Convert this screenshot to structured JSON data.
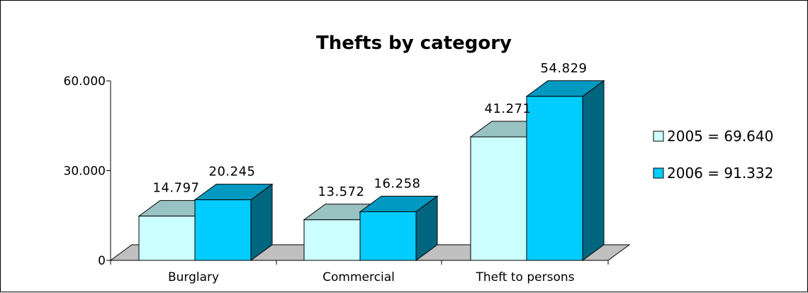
{
  "chart_data": {
    "type": "bar",
    "title": "Thefts by category",
    "xlabel": "",
    "ylabel": "",
    "categories": [
      "Burglary",
      "Commercial",
      "Theft to persons"
    ],
    "series": [
      {
        "name": "2005 = 69.640",
        "values": [
          14797,
          13572,
          41271
        ],
        "value_labels": [
          "14.797",
          "13.572",
          "41.271"
        ]
      },
      {
        "name": "2006 = 91.332",
        "values": [
          20245,
          16258,
          54829
        ],
        "value_labels": [
          "20.245",
          "16.258",
          "54.829"
        ]
      }
    ],
    "ylim": [
      0,
      60000
    ],
    "yticks": [
      0,
      30000,
      60000
    ],
    "ytick_labels": [
      "0",
      "30.000",
      "60.000"
    ],
    "grid": false,
    "legend_position": "right",
    "colors": {
      "series_2005_front": "#ccffff",
      "series_2005_top": "#99c2c2",
      "series_2005_side": "#6b9e9e",
      "series_2006_front": "#00ccff",
      "series_2006_top": "#0099c2",
      "series_2006_side": "#006680",
      "floor": "#c0c0c0",
      "outline": "#000000"
    }
  }
}
